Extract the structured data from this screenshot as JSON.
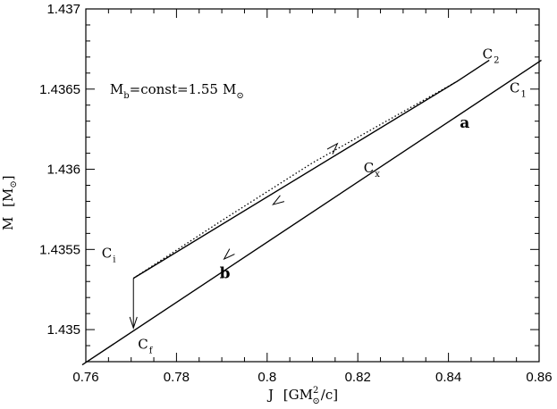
{
  "chart_data": {
    "type": "line",
    "xlabel_main": "J",
    "xlabel_unit": "[GM",
    "xlabel_sub": "⊙",
    "xlabel_sup": "2",
    "xlabel_tail": "/c]",
    "ylabel_main": "M",
    "ylabel_unit_open": "[M",
    "ylabel_sub": "⊙",
    "ylabel_close": "]",
    "xlim": [
      0.76,
      0.86
    ],
    "ylim": [
      1.4348,
      1.437
    ],
    "xticks": [
      0.76,
      0.78,
      0.8,
      0.82,
      0.84,
      0.86
    ],
    "xtick_labels": [
      "0.76",
      "0.78",
      "0.8",
      "0.82",
      "0.84",
      "0.86"
    ],
    "yticks": [
      1.435,
      1.4355,
      1.436,
      1.4365,
      1.437
    ],
    "ytick_labels": [
      "1.435",
      "1.4355",
      "1.436",
      "1.4365",
      "1.437"
    ],
    "minor_xstep": 0.005,
    "minor_ystep": 0.0001,
    "series": [
      {
        "name": "C₁",
        "style": "solid",
        "x": [
          0.7592,
          0.8605
        ],
        "y": [
          1.43478,
          1.43668
        ]
      },
      {
        "name": "C₂",
        "style": "solid",
        "x": [
          0.7705,
          0.842,
          0.849
        ],
        "y": [
          1.43532,
          1.43655,
          1.43668
        ]
      },
      {
        "name": "",
        "style": "dotted",
        "x": [
          0.7705,
          0.79,
          0.81,
          0.842
        ],
        "y": [
          1.43532,
          1.43568,
          1.43604,
          1.43655
        ]
      }
    ],
    "arrows": [
      {
        "style": "thin",
        "from": [
          0.7705,
          1.43532
        ],
        "to": [
          0.7705,
          1.43501
        ]
      },
      {
        "style": "head",
        "from": [
          0.8045,
          1.43584
        ],
        "to": [
          0.8013,
          1.43578
        ]
      },
      {
        "style": "head",
        "from": [
          0.8122,
          1.43606
        ],
        "to": [
          0.8155,
          1.43616
        ]
      },
      {
        "style": "head",
        "from": [
          0.7935,
          1.43552
        ],
        "to": [
          0.7905,
          1.43544
        ]
      }
    ],
    "point_labels": [
      {
        "main": "C",
        "sub": "2",
        "x": 0.8475,
        "y": 1.43669
      },
      {
        "main": "C",
        "sub": "1",
        "x": 0.8535,
        "y": 1.43648
      },
      {
        "main": "C",
        "sub": "x",
        "x": 0.8213,
        "y": 1.43598
      },
      {
        "main": "C",
        "sub": "i",
        "x": 0.7635,
        "y": 1.43545
      },
      {
        "main": "C",
        "sub": "f",
        "x": 0.7715,
        "y": 1.43488
      }
    ],
    "curve_labels": [
      {
        "text": "a",
        "x": 0.8425,
        "y": 1.43626
      },
      {
        "text": "b",
        "x": 0.7895,
        "y": 1.43532
      }
    ],
    "annotation": {
      "m": "M",
      "m_sub": "b",
      "eq": "=const=1.55",
      "m2": "M",
      "m2_sub": "⊙",
      "x": 0.7653,
      "y": 1.43647
    }
  }
}
